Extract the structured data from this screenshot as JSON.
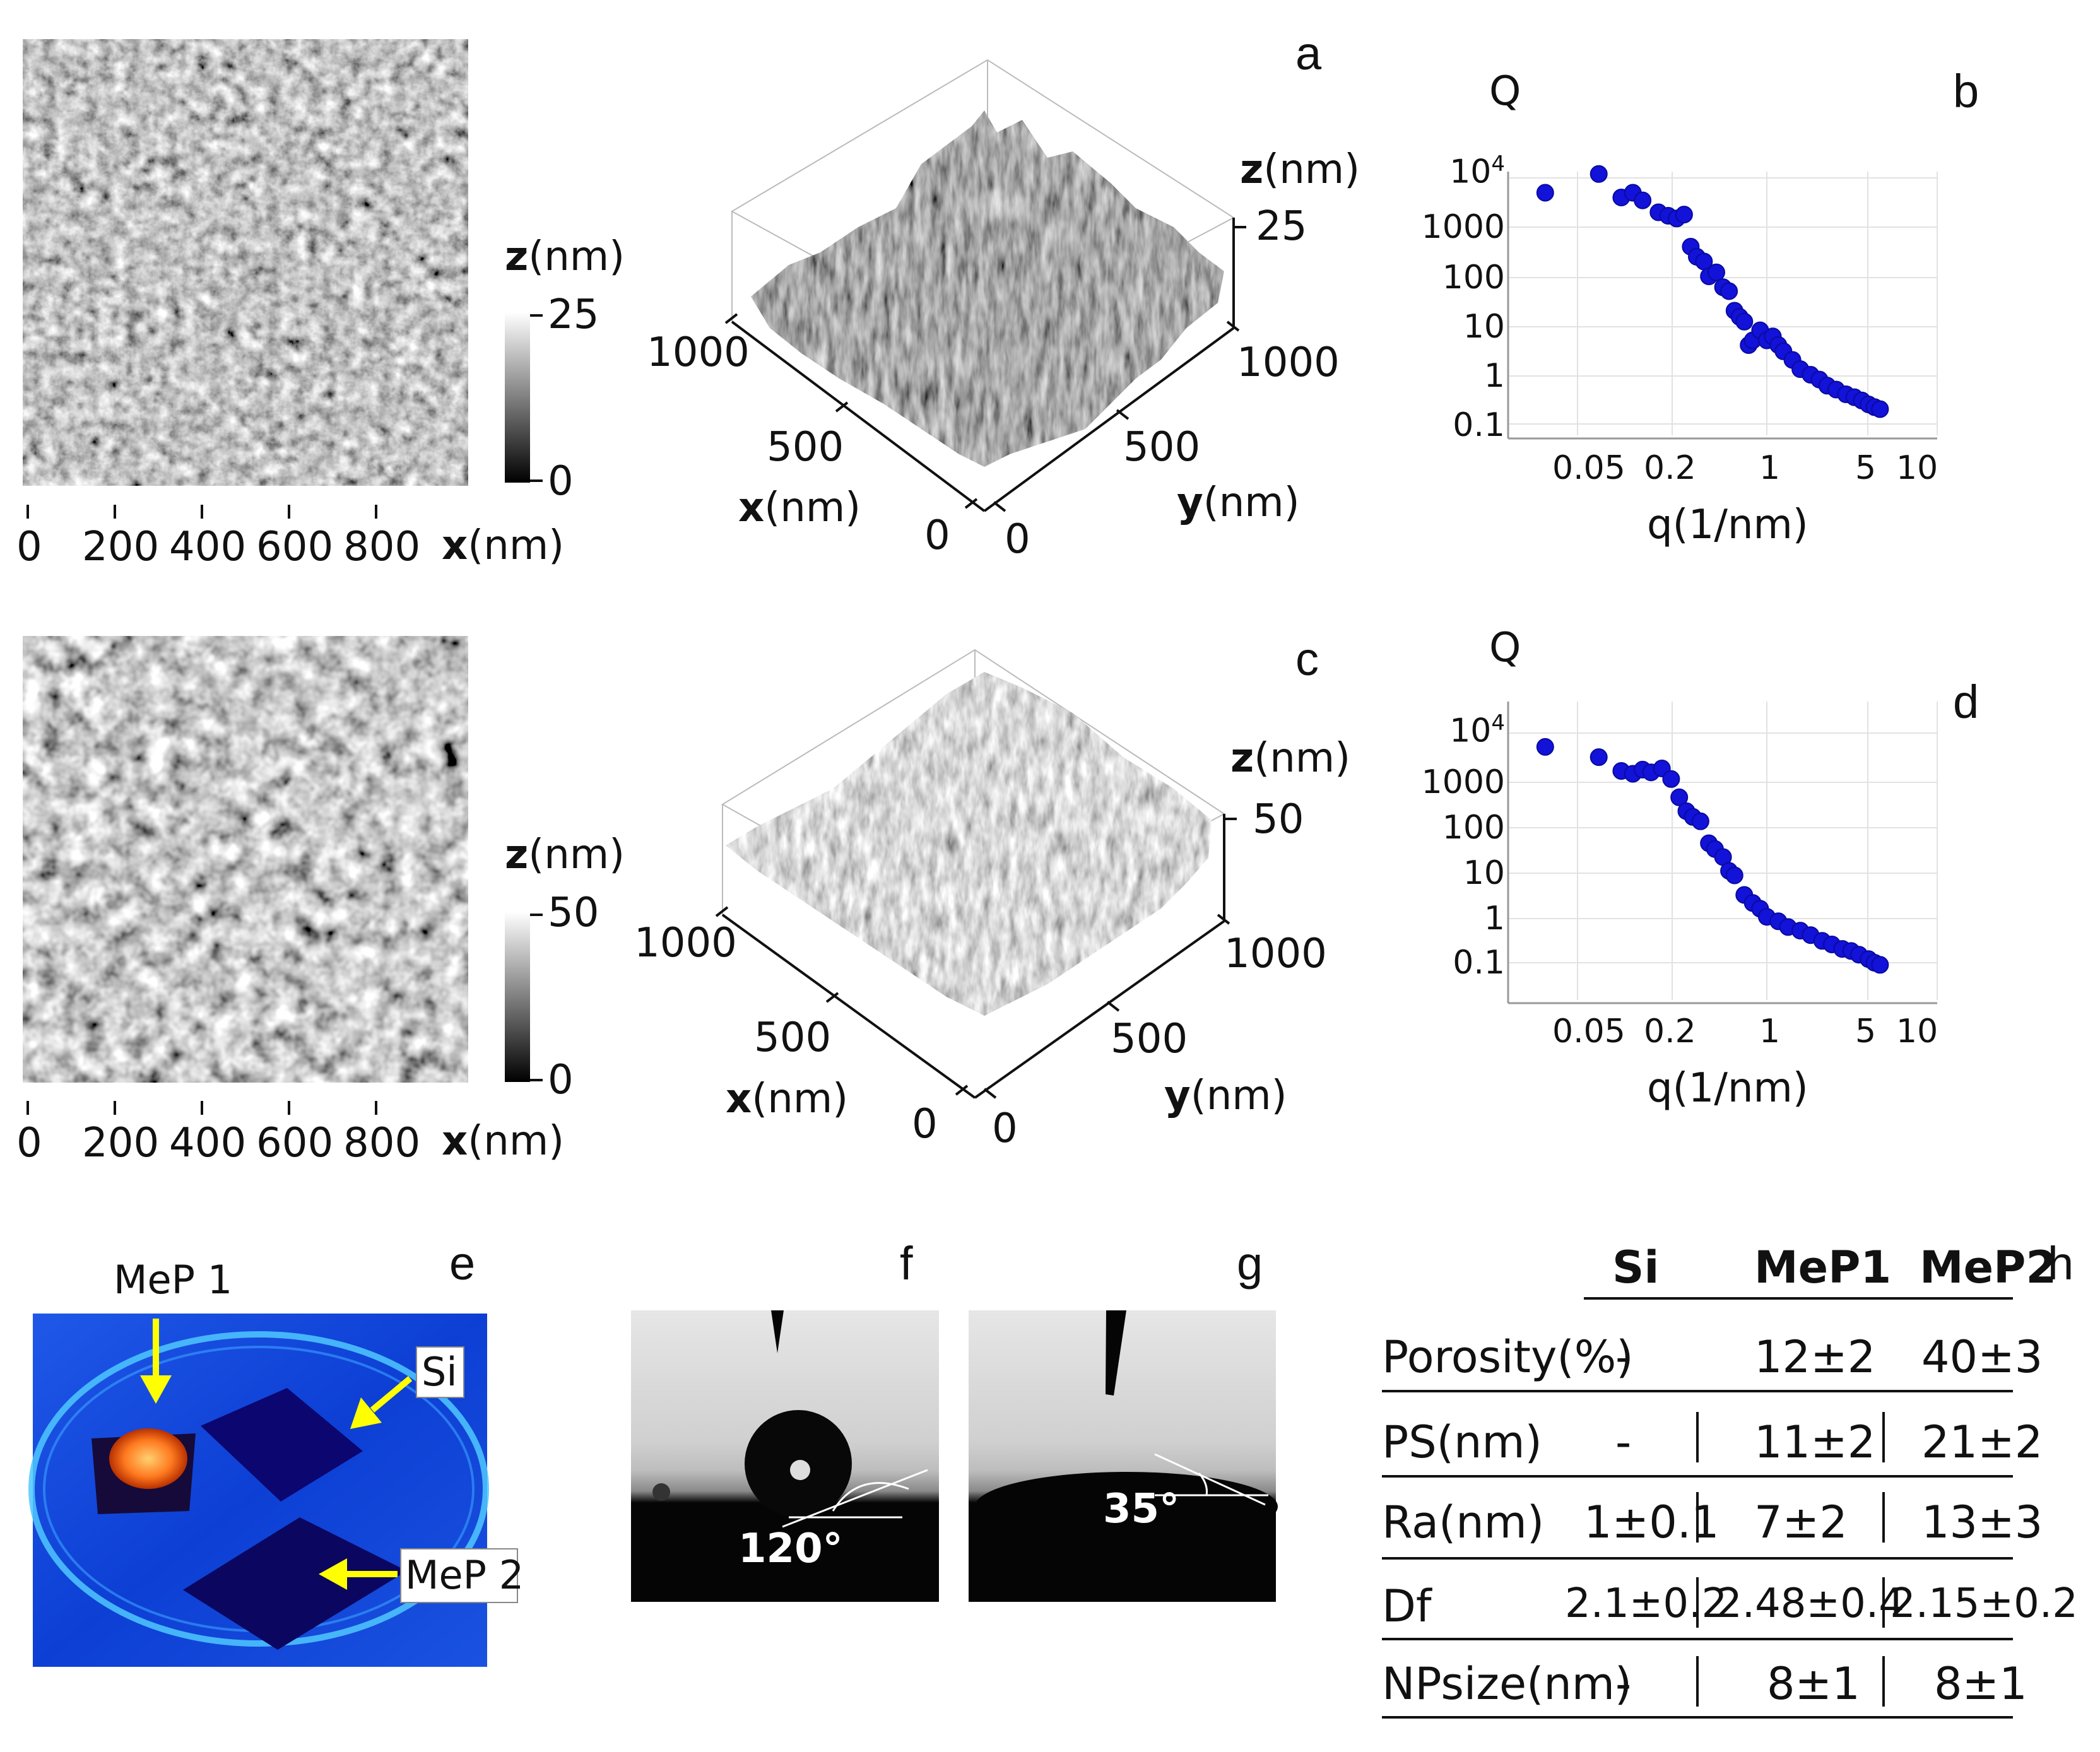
{
  "panel_letters": {
    "a": "a",
    "b": "b",
    "c": "c",
    "d": "d",
    "e": "e",
    "f": "f",
    "g": "g",
    "h": "h"
  },
  "afm_top": {
    "x_ticks": [
      "0",
      "200",
      "400",
      "600",
      "800"
    ],
    "x_axis_bold": "x",
    "x_axis_unit": "(nm)",
    "z_label_bold": "z",
    "z_label_unit": "(nm)",
    "z_max": "25",
    "z_min": "0"
  },
  "afm_bottom": {
    "x_ticks": [
      "0",
      "200",
      "400",
      "600",
      "800"
    ],
    "x_axis_bold": "x",
    "x_axis_unit": "(nm)",
    "z_label_bold": "z",
    "z_label_unit": "(nm)",
    "z_max": "50",
    "z_min": "0"
  },
  "surf_top": {
    "x_label_bold": "x",
    "x_label_unit": "(nm)",
    "y_label_bold": "y",
    "y_label_unit": "(nm)",
    "z_label_bold": "z",
    "z_label_unit": "(nm)",
    "z_max": "25",
    "x_ticks": [
      "1000",
      "500",
      "0"
    ],
    "y_ticks": [
      "1000",
      "500",
      "0"
    ]
  },
  "surf_bottom": {
    "x_label_bold": "x",
    "x_label_unit": "(nm)",
    "y_label_bold": "y",
    "y_label_unit": "(nm)",
    "z_label_bold": "z",
    "z_label_unit": "(nm)",
    "z_max": "50",
    "x_ticks": [
      "1000",
      "500",
      "0"
    ],
    "y_ticks": [
      "1000",
      "500",
      "0"
    ]
  },
  "photo_e": {
    "labels": [
      "MeP 1",
      "Si",
      "MeP 2"
    ]
  },
  "contact_angles": {
    "f": "120°",
    "g": "35°"
  },
  "chart_data": [
    {
      "type": "scatter",
      "panel": "b",
      "ylabel": "Q",
      "xlabel": "q(1/nm)",
      "xscale": "log",
      "yscale": "log",
      "xlim": [
        0.02,
        20
      ],
      "ylim": [
        0.05,
        30000
      ],
      "x_ticks": [
        "0.05",
        "0.2",
        "1",
        "5",
        "10"
      ],
      "y_ticks": [
        "0.1",
        "1",
        "10",
        "100",
        "1000",
        "10^4"
      ],
      "color": "#1212d8",
      "points": [
        [
          0.03,
          5000
        ],
        [
          0.07,
          12000
        ],
        [
          0.1,
          4000
        ],
        [
          0.12,
          5000
        ],
        [
          0.14,
          3500
        ],
        [
          0.18,
          2000
        ],
        [
          0.21,
          1700
        ],
        [
          0.24,
          1500
        ],
        [
          0.27,
          1800
        ],
        [
          0.3,
          400
        ],
        [
          0.33,
          250
        ],
        [
          0.37,
          200
        ],
        [
          0.4,
          100
        ],
        [
          0.45,
          120
        ],
        [
          0.5,
          60
        ],
        [
          0.55,
          50
        ],
        [
          0.6,
          20
        ],
        [
          0.65,
          15
        ],
        [
          0.7,
          12
        ],
        [
          0.75,
          4
        ],
        [
          0.8,
          5
        ],
        [
          0.9,
          8
        ],
        [
          1.0,
          5
        ],
        [
          1.1,
          6
        ],
        [
          1.2,
          4
        ],
        [
          1.3,
          3
        ],
        [
          1.5,
          2
        ],
        [
          1.7,
          1.3
        ],
        [
          2.0,
          1
        ],
        [
          2.3,
          0.8
        ],
        [
          2.6,
          0.6
        ],
        [
          3.0,
          0.5
        ],
        [
          3.5,
          0.4
        ],
        [
          4.0,
          0.35
        ],
        [
          4.5,
          0.3
        ],
        [
          5.0,
          0.25
        ],
        [
          5.5,
          0.22
        ],
        [
          6.0,
          0.2
        ]
      ]
    },
    {
      "type": "scatter",
      "panel": "d",
      "ylabel": "Q",
      "xlabel": "q(1/nm)",
      "xscale": "log",
      "yscale": "log",
      "xlim": [
        0.02,
        20
      ],
      "ylim": [
        0.03,
        30000
      ],
      "x_ticks": [
        "0.05",
        "0.2",
        "1",
        "5",
        "10"
      ],
      "y_ticks": [
        "0.1",
        "1",
        "10",
        "100",
        "1000",
        "10^4"
      ],
      "color": "#1212d8",
      "points": [
        [
          0.03,
          5000
        ],
        [
          0.07,
          3000
        ],
        [
          0.1,
          1500
        ],
        [
          0.12,
          1300
        ],
        [
          0.14,
          1600
        ],
        [
          0.16,
          1400
        ],
        [
          0.19,
          1700
        ],
        [
          0.22,
          1000
        ],
        [
          0.25,
          400
        ],
        [
          0.28,
          200
        ],
        [
          0.31,
          150
        ],
        [
          0.35,
          120
        ],
        [
          0.4,
          40
        ],
        [
          0.44,
          30
        ],
        [
          0.5,
          20
        ],
        [
          0.55,
          10
        ],
        [
          0.6,
          8
        ],
        [
          0.7,
          3
        ],
        [
          0.8,
          2
        ],
        [
          0.9,
          1.5
        ],
        [
          1.0,
          1
        ],
        [
          1.2,
          0.8
        ],
        [
          1.4,
          0.6
        ],
        [
          1.7,
          0.5
        ],
        [
          2.0,
          0.4
        ],
        [
          2.4,
          0.3
        ],
        [
          2.8,
          0.25
        ],
        [
          3.3,
          0.2
        ],
        [
          3.8,
          0.18
        ],
        [
          4.3,
          0.15
        ],
        [
          5.0,
          0.12
        ],
        [
          5.5,
          0.1
        ],
        [
          6.0,
          0.09
        ]
      ]
    }
  ],
  "table_h": {
    "headers": [
      "Si",
      "MeP1",
      "MeP2"
    ],
    "rows": [
      {
        "label": "Porosity(%)",
        "values": [
          "-",
          "12±2",
          "40±3"
        ]
      },
      {
        "label": "PS(nm)",
        "values": [
          "-",
          "11±2",
          "21±2"
        ]
      },
      {
        "label": "Ra(nm)",
        "values": [
          "1±0.1",
          "7±2",
          "13±3"
        ]
      },
      {
        "label": "Df",
        "values": [
          "2.1±0.2",
          "2.48±0.4",
          "2.15±0.2"
        ]
      },
      {
        "label": "NPsize(nm)",
        "values": [
          "-",
          "8±1",
          "8±1"
        ]
      }
    ]
  }
}
